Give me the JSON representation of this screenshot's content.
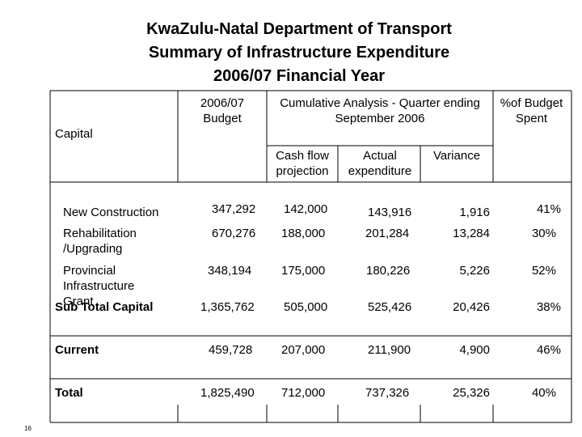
{
  "title": {
    "line1": "KwaZulu-Natal Department of Transport",
    "line2": "Summary of Infrastructure Expenditure",
    "line3": "2006/07 Financial Year"
  },
  "headers": {
    "capital": "Capital",
    "budget": "2006/07 Budget",
    "cumulative": "Cumulative Analysis - Quarter ending September 2006",
    "pct_spent": "%of Budget Spent",
    "cash_flow": "Cash flow projection",
    "actual": "Actual expenditure",
    "variance": "Variance"
  },
  "rows": [
    {
      "label": "New Construction",
      "budget": "347,292",
      "cash_flow": "142,000",
      "actual": "143,916",
      "variance": "1,916",
      "pct": "41%"
    },
    {
      "label": "Rehabilitation /Upgrading",
      "budget": "670,276",
      "cash_flow": "188,000",
      "actual": "201,284",
      "variance": "13,284",
      "pct": "30%"
    },
    {
      "label": "Provincial Infrastructure Grant",
      "budget": "348,194",
      "cash_flow": "175,000",
      "actual": "180,226",
      "variance": "5,226",
      "pct": "52%"
    },
    {
      "label": "Sub Total Capital",
      "budget": "1,365,762",
      "cash_flow": "505,000",
      "actual": "525,426",
      "variance": "20,426",
      "pct": "38%"
    },
    {
      "label": "Current",
      "budget": "459,728",
      "cash_flow": "207,000",
      "actual": "211,900",
      "variance": "4,900",
      "pct": "46%"
    },
    {
      "label": "Total",
      "budget": "1,825,490",
      "cash_flow": "712,000",
      "actual": "737,326",
      "variance": "25,326",
      "pct": "40%"
    }
  ],
  "page_number": "16"
}
